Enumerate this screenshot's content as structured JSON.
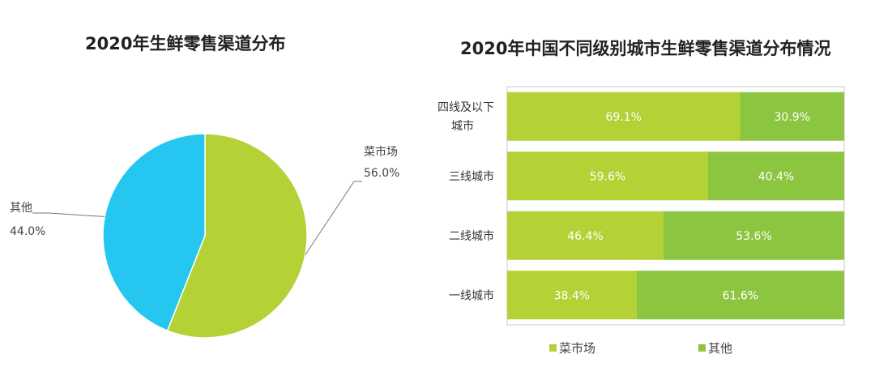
{
  "chart_data": [
    {
      "type": "pie",
      "title": "2020年生鲜零售渠道分布",
      "slices": [
        {
          "name": "菜市场",
          "value": 56.0,
          "label": "56.0%",
          "color": "#B4D235"
        },
        {
          "name": "其他",
          "value": 44.0,
          "label": "44.0%",
          "color": "#25C6F0"
        }
      ]
    },
    {
      "type": "bar",
      "orientation": "horizontal",
      "stacked": true,
      "title": "2020年中国不同级别城市生鲜零售渠道分布情况",
      "categories": [
        "四线及以下城市",
        "三线城市",
        "二线城市",
        "一线城市"
      ],
      "series": [
        {
          "name": "菜市场",
          "color": "#B4D235",
          "values": [
            69.1,
            59.6,
            46.4,
            38.4
          ],
          "labels": [
            "69.1%",
            "59.6%",
            "46.4%",
            "38.4%"
          ]
        },
        {
          "name": "其他",
          "color": "#8CC540",
          "values": [
            30.9,
            40.4,
            53.6,
            61.6
          ],
          "labels": [
            "30.9%",
            "40.4%",
            "53.6%",
            "61.6%"
          ]
        }
      ],
      "xlim": [
        0,
        100
      ],
      "legend": "bottom"
    }
  ]
}
